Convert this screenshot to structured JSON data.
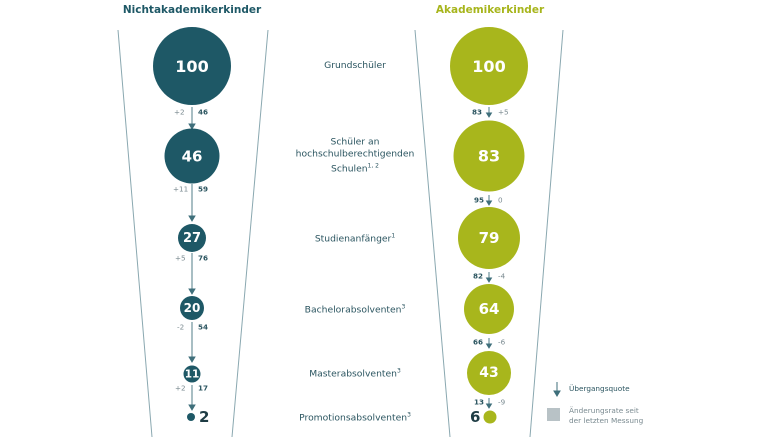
{
  "headers": {
    "left": "Nichtakademikerkinder",
    "right": "Akademikerkinder"
  },
  "colors": {
    "left": "#1e5866",
    "right": "#a8b61c"
  },
  "stages": [
    {
      "label": "Grundschüler",
      "sup": "",
      "left_value": "100",
      "right_value": "100"
    },
    {
      "label": "Schüler an hochschulberechtigenden Schulen",
      "sup": "1, 2",
      "left_value": "46",
      "right_value": "83"
    },
    {
      "label": "Studienanfänger",
      "sup": "1",
      "left_value": "27",
      "right_value": "79"
    },
    {
      "label": "Bachelorabsolventen",
      "sup": "3",
      "left_value": "20",
      "right_value": "64"
    },
    {
      "label": "Masterabsolventen",
      "sup": "3",
      "left_value": "11",
      "right_value": "43"
    },
    {
      "label": "Promotionsabsolventen",
      "sup": "3",
      "left_value": "2",
      "right_value": "6"
    }
  ],
  "transitions_left": [
    {
      "change": "+2",
      "rate": "46"
    },
    {
      "change": "+11",
      "rate": "59"
    },
    {
      "change": "+5",
      "rate": "76"
    },
    {
      "change": "-2",
      "rate": "54"
    },
    {
      "change": "+2",
      "rate": "17"
    }
  ],
  "transitions_right": [
    {
      "rate": "83",
      "change": "+5"
    },
    {
      "rate": "95",
      "change": "0"
    },
    {
      "rate": "82",
      "change": "-4"
    },
    {
      "rate": "66",
      "change": "-6"
    },
    {
      "rate": "13",
      "change": "-9"
    }
  ],
  "legend": {
    "arrow_label": "Übergangsquote",
    "box_label_1": "Änderungsrate seit",
    "box_label_2": "der letzten Messung"
  }
}
